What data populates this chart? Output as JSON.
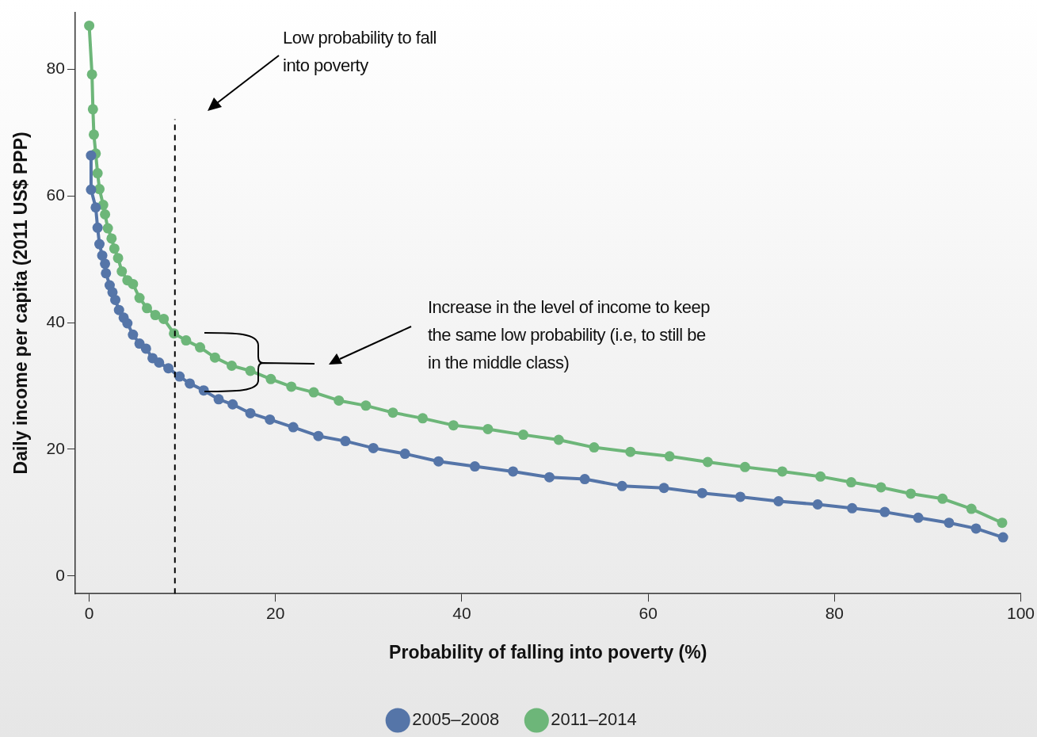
{
  "chart_data": {
    "type": "line",
    "xlabel": "Probability of falling into poverty (%)",
    "ylabel": "Daily income per capita (2011 US$ PPP)",
    "xlim": [
      -1.5,
      100
    ],
    "xticks": [
      0,
      20,
      40,
      60,
      80,
      100
    ],
    "ylim": [
      -2.8,
      89
    ],
    "yticks": [
      0,
      20,
      40,
      60,
      80
    ],
    "grid": false,
    "legend": "bottom",
    "marker": "circle",
    "line_style": "solid",
    "series": [
      {
        "name": "2005–2008",
        "color": "#5575a8",
        "x": [
          0.2,
          0.2,
          0.7,
          0.9,
          1.1,
          1.4,
          1.7,
          1.8,
          2.2,
          2.5,
          2.8,
          3.2,
          3.7,
          4.1,
          4.7,
          5.4,
          6.1,
          6.8,
          7.5,
          8.5,
          9.7,
          10.8,
          12.3,
          13.9,
          15.4,
          17.3,
          19.4,
          21.9,
          24.6,
          27.5,
          30.5,
          33.9,
          37.5,
          41.4,
          45.5,
          49.4,
          53.2,
          57.2,
          61.7,
          65.8,
          69.9,
          74,
          78.2,
          81.9,
          85.4,
          89,
          92.3,
          95.2,
          98.1
        ],
        "values": [
          66.4,
          61,
          58.2,
          55,
          52.4,
          50.6,
          49.3,
          47.8,
          45.9,
          44.8,
          43.6,
          42,
          40.8,
          39.9,
          38.1,
          36.7,
          35.9,
          34.4,
          33.7,
          32.8,
          31.5,
          30.4,
          29.3,
          27.9,
          27.1,
          25.7,
          24.7,
          23.5,
          22.1,
          21.3,
          20.2,
          19.3,
          18.1,
          17.3,
          16.5,
          15.6,
          15.3,
          14.2,
          13.9,
          13.1,
          12.5,
          11.8,
          11.3,
          10.7,
          10.1,
          9.2,
          8.4,
          7.5,
          6.1
        ]
      },
      {
        "name": "2011–2014",
        "color": "#6db679",
        "x": [
          0,
          0.3,
          0.4,
          0.5,
          0.7,
          0.9,
          1.1,
          1.5,
          1.7,
          2,
          2.4,
          2.7,
          3.1,
          3.5,
          4.1,
          4.7,
          5.4,
          6.2,
          7.1,
          8,
          9.1,
          10.4,
          11.9,
          13.5,
          15.3,
          17.3,
          19.5,
          21.7,
          24.1,
          26.8,
          29.7,
          32.6,
          35.8,
          39.1,
          42.8,
          46.6,
          50.4,
          54.2,
          58.1,
          62.3,
          66.4,
          70.4,
          74.4,
          78.5,
          81.8,
          85,
          88.2,
          91.6,
          94.7,
          98
        ],
        "values": [
          86.9,
          79.2,
          73.7,
          69.7,
          66.7,
          63.6,
          61.1,
          58.6,
          57.1,
          54.9,
          53.3,
          51.7,
          50.2,
          48.1,
          46.7,
          46.1,
          43.9,
          42.3,
          41.2,
          40.6,
          38.3,
          37.2,
          36.1,
          34.5,
          33.2,
          32.4,
          31.1,
          29.9,
          29,
          27.7,
          26.9,
          25.8,
          24.9,
          23.8,
          23.2,
          22.3,
          21.5,
          20.3,
          19.6,
          18.9,
          18,
          17.2,
          16.5,
          15.7,
          14.8,
          14,
          13,
          12.2,
          10.6,
          8.4
        ]
      }
    ],
    "ref_lines": [
      {
        "axis": "x",
        "value": 9.2,
        "color": "#000000",
        "line_style": "dashed"
      }
    ],
    "annotations": [
      "Low probability to fall into poverty",
      "Increase in the level of income to keep the same low probability (i.e, to still be in the middle class)"
    ]
  }
}
